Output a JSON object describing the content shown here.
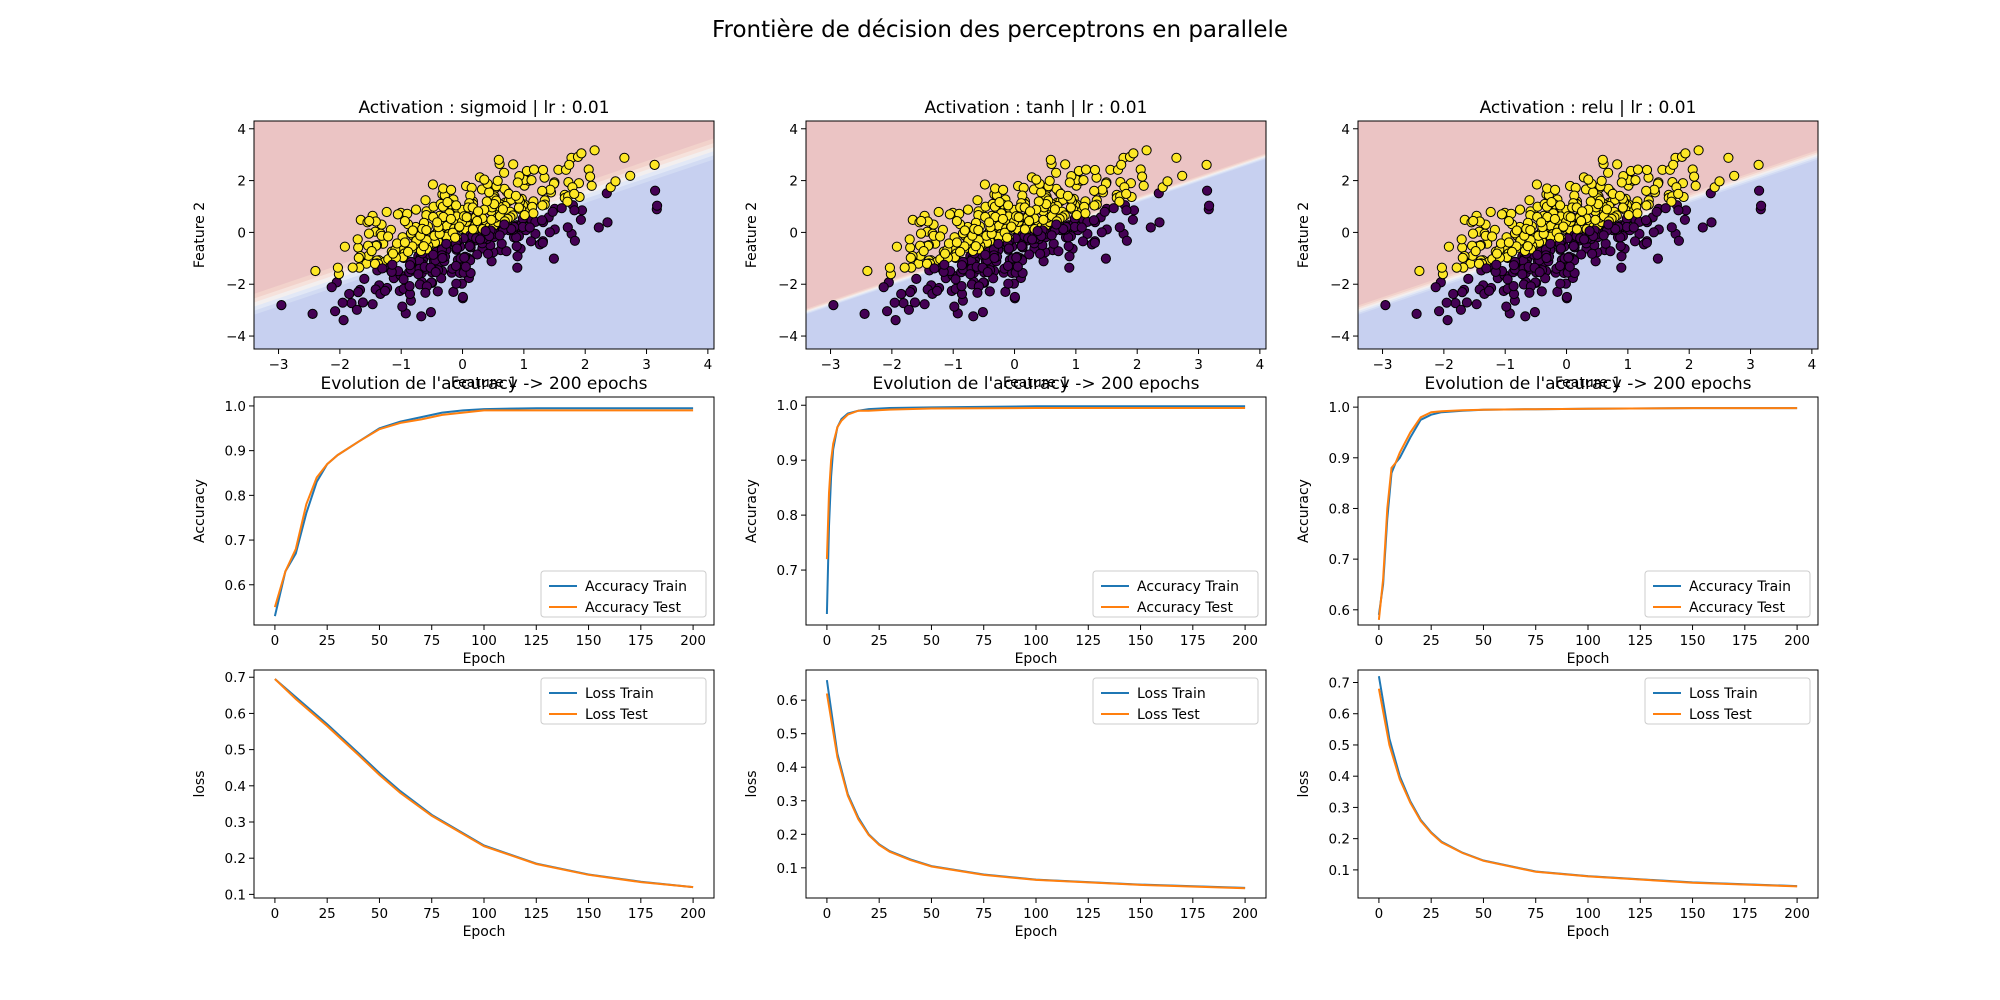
{
  "figure": {
    "suptitle": "Frontière de décision des perceptrons en parallele"
  },
  "colors": {
    "region_class1": "#ebc4c4",
    "region_class0": "#c7d0f0",
    "point_class1": "#fde725",
    "point_class0": "#440154",
    "line_train": "#1f77b4",
    "line_test": "#ff7f0e"
  },
  "chart_data": [
    {
      "type": "scatter",
      "panel": "decision-sigmoid",
      "title": "Activation : sigmoid | lr : 0.01",
      "xlabel": "Feature 1",
      "ylabel": "Feature 2",
      "xlim": [
        -3.4,
        4.1
      ],
      "ylim": [
        -4.5,
        4.3
      ],
      "xticks": [
        -3,
        -2,
        -1,
        0,
        1,
        2,
        3,
        4
      ],
      "yticks": [
        -4,
        -2,
        0,
        2,
        4
      ],
      "boundary": {
        "slope": 0.8,
        "intercept": -0.1,
        "transition_width": 0.45
      },
      "n_points": 500,
      "classes": [
        "1",
        "0"
      ],
      "grid": false
    },
    {
      "type": "scatter",
      "panel": "decision-tanh",
      "title": "Activation : tanh | lr : 0.01",
      "xlabel": "Feature 1",
      "ylabel": "Feature 2",
      "xlim": [
        -3.4,
        4.1
      ],
      "ylim": [
        -4.5,
        4.3
      ],
      "xticks": [
        -3,
        -2,
        -1,
        0,
        1,
        2,
        3,
        4
      ],
      "yticks": [
        -4,
        -2,
        0,
        2,
        4
      ],
      "boundary": {
        "slope": 0.8,
        "intercept": -0.35,
        "transition_width": 0.12
      },
      "n_points": 500,
      "classes": [
        "1",
        "0"
      ],
      "grid": false
    },
    {
      "type": "scatter",
      "panel": "decision-relu",
      "title": "Activation : relu | lr : 0.01",
      "xlabel": "Feature 1",
      "ylabel": "Feature 2",
      "xlim": [
        -3.4,
        4.1
      ],
      "ylim": [
        -4.5,
        4.3
      ],
      "xticks": [
        -3,
        -2,
        -1,
        0,
        1,
        2,
        3,
        4
      ],
      "yticks": [
        -4,
        -2,
        0,
        2,
        4
      ],
      "boundary": {
        "slope": 0.8,
        "intercept": -0.3,
        "transition_width": 0.2
      },
      "n_points": 500,
      "classes": [
        "1",
        "0"
      ],
      "grid": false
    },
    {
      "type": "line",
      "panel": "accuracy-sigmoid",
      "title": "Evolution de l'accuracy -> 200 epochs",
      "xlabel": "Epoch",
      "ylabel": "Accuracy",
      "xlim": [
        -10,
        210
      ],
      "ylim": [
        0.51,
        1.02
      ],
      "xticks": [
        0,
        25,
        50,
        75,
        100,
        125,
        150,
        175,
        200
      ],
      "yticks": [
        0.6,
        0.7,
        0.8,
        0.9,
        1.0
      ],
      "legend": "lower right",
      "x": [
        0,
        5,
        10,
        15,
        20,
        25,
        30,
        40,
        50,
        60,
        70,
        80,
        90,
        100,
        125,
        150,
        175,
        200
      ],
      "series": [
        {
          "name": "Accuracy Train",
          "values": [
            0.53,
            0.63,
            0.67,
            0.76,
            0.83,
            0.87,
            0.89,
            0.92,
            0.95,
            0.965,
            0.975,
            0.985,
            0.99,
            0.993,
            0.995,
            0.995,
            0.995,
            0.995
          ]
        },
        {
          "name": "Accuracy Test",
          "values": [
            0.55,
            0.63,
            0.68,
            0.78,
            0.84,
            0.87,
            0.89,
            0.92,
            0.948,
            0.962,
            0.97,
            0.98,
            0.985,
            0.99,
            0.99,
            0.99,
            0.99,
            0.99
          ]
        }
      ]
    },
    {
      "type": "line",
      "panel": "accuracy-tanh",
      "title": "Evolution de l'accuracy -> 200 epochs",
      "xlabel": "Epoch",
      "ylabel": "Accuracy",
      "xlim": [
        -10,
        210
      ],
      "ylim": [
        0.6,
        1.015
      ],
      "xticks": [
        0,
        25,
        50,
        75,
        100,
        125,
        150,
        175,
        200
      ],
      "yticks": [
        0.7,
        0.8,
        0.9,
        1.0
      ],
      "legend": "lower right",
      "x": [
        0,
        1,
        2,
        3,
        5,
        7,
        10,
        15,
        20,
        30,
        50,
        100,
        150,
        200
      ],
      "series": [
        {
          "name": "Accuracy Train",
          "values": [
            0.62,
            0.78,
            0.87,
            0.92,
            0.96,
            0.975,
            0.985,
            0.99,
            0.993,
            0.995,
            0.996,
            0.998,
            0.998,
            0.998
          ]
        },
        {
          "name": "Accuracy Test",
          "values": [
            0.72,
            0.84,
            0.9,
            0.93,
            0.96,
            0.972,
            0.983,
            0.99,
            0.99,
            0.992,
            0.994,
            0.995,
            0.995,
            0.995
          ]
        }
      ]
    },
    {
      "type": "line",
      "panel": "accuracy-relu",
      "title": "Evolution de l'accuracy -> 200 epochs",
      "xlabel": "Epoch",
      "ylabel": "Accuracy",
      "xlim": [
        -10,
        210
      ],
      "ylim": [
        0.57,
        1.02
      ],
      "xticks": [
        0,
        25,
        50,
        75,
        100,
        125,
        150,
        175,
        200
      ],
      "yticks": [
        0.6,
        0.7,
        0.8,
        0.9,
        1.0
      ],
      "legend": "lower right",
      "x": [
        0,
        2,
        4,
        6,
        8,
        10,
        15,
        20,
        25,
        30,
        40,
        50,
        75,
        100,
        150,
        200
      ],
      "series": [
        {
          "name": "Accuracy Train",
          "values": [
            0.59,
            0.65,
            0.78,
            0.87,
            0.89,
            0.9,
            0.94,
            0.975,
            0.985,
            0.99,
            0.993,
            0.995,
            0.996,
            0.997,
            0.998,
            0.998
          ]
        },
        {
          "name": "Accuracy Test",
          "values": [
            0.58,
            0.66,
            0.8,
            0.88,
            0.89,
            0.91,
            0.95,
            0.98,
            0.99,
            0.992,
            0.994,
            0.995,
            0.996,
            0.997,
            0.998,
            0.998
          ]
        }
      ]
    },
    {
      "type": "line",
      "panel": "loss-sigmoid",
      "title": "",
      "xlabel": "Epoch",
      "ylabel": "loss",
      "xlim": [
        -10,
        210
      ],
      "ylim": [
        0.09,
        0.72
      ],
      "xticks": [
        0,
        25,
        50,
        75,
        100,
        125,
        150,
        175,
        200
      ],
      "yticks": [
        0.1,
        0.2,
        0.3,
        0.4,
        0.5,
        0.6,
        0.7
      ],
      "legend": "upper right",
      "x": [
        0,
        10,
        25,
        40,
        50,
        60,
        75,
        100,
        125,
        150,
        175,
        200
      ],
      "series": [
        {
          "name": "Loss Train",
          "values": [
            0.695,
            0.645,
            0.57,
            0.49,
            0.435,
            0.385,
            0.32,
            0.235,
            0.185,
            0.155,
            0.135,
            0.12
          ]
        },
        {
          "name": "Loss Test",
          "values": [
            0.695,
            0.64,
            0.565,
            0.485,
            0.43,
            0.38,
            0.317,
            0.233,
            0.184,
            0.154,
            0.134,
            0.12
          ]
        }
      ]
    },
    {
      "type": "line",
      "panel": "loss-tanh",
      "title": "",
      "xlabel": "Epoch",
      "ylabel": "loss",
      "xlim": [
        -10,
        210
      ],
      "ylim": [
        0.01,
        0.69
      ],
      "xticks": [
        0,
        25,
        50,
        75,
        100,
        125,
        150,
        175,
        200
      ],
      "yticks": [
        0.1,
        0.2,
        0.3,
        0.4,
        0.5,
        0.6
      ],
      "legend": "upper right",
      "x": [
        0,
        5,
        10,
        15,
        20,
        25,
        30,
        40,
        50,
        75,
        100,
        150,
        200
      ],
      "series": [
        {
          "name": "Loss Train",
          "values": [
            0.66,
            0.44,
            0.32,
            0.25,
            0.2,
            0.17,
            0.15,
            0.125,
            0.105,
            0.08,
            0.065,
            0.05,
            0.04
          ]
        },
        {
          "name": "Loss Test",
          "values": [
            0.62,
            0.43,
            0.315,
            0.245,
            0.198,
            0.168,
            0.148,
            0.123,
            0.104,
            0.079,
            0.064,
            0.049,
            0.039
          ]
        }
      ]
    },
    {
      "type": "line",
      "panel": "loss-relu",
      "title": "",
      "xlabel": "Epoch",
      "ylabel": "loss",
      "xlim": [
        -10,
        210
      ],
      "ylim": [
        0.01,
        0.74
      ],
      "xticks": [
        0,
        25,
        50,
        75,
        100,
        125,
        150,
        175,
        200
      ],
      "yticks": [
        0.1,
        0.2,
        0.3,
        0.4,
        0.5,
        0.6,
        0.7
      ],
      "legend": "upper right",
      "x": [
        0,
        5,
        10,
        15,
        20,
        25,
        30,
        40,
        50,
        75,
        100,
        150,
        200
      ],
      "series": [
        {
          "name": "Loss Train",
          "values": [
            0.72,
            0.52,
            0.4,
            0.32,
            0.26,
            0.22,
            0.19,
            0.155,
            0.13,
            0.095,
            0.08,
            0.06,
            0.048
          ]
        },
        {
          "name": "Loss Test",
          "values": [
            0.68,
            0.5,
            0.39,
            0.315,
            0.257,
            0.218,
            0.188,
            0.154,
            0.129,
            0.094,
            0.079,
            0.059,
            0.047
          ]
        }
      ]
    }
  ]
}
